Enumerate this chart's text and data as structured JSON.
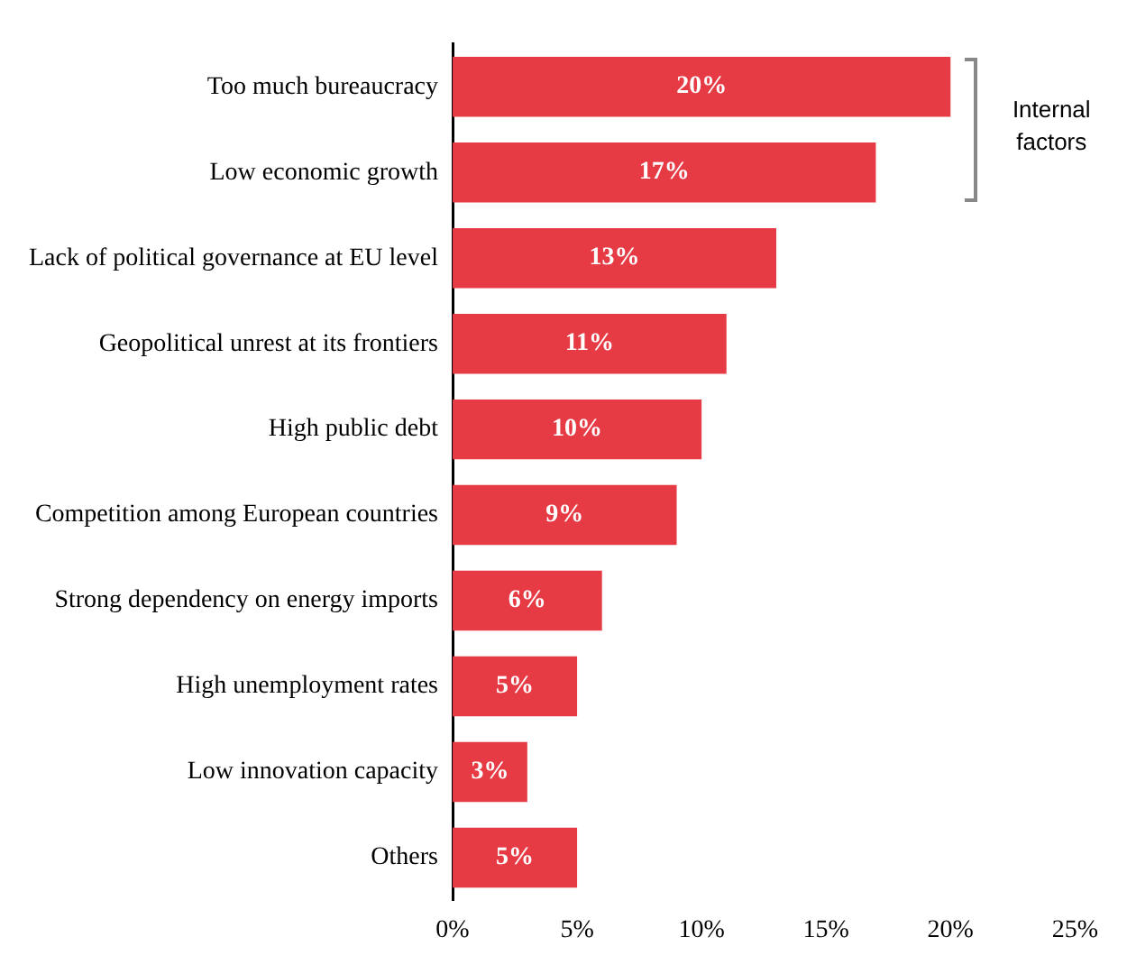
{
  "chart_data": {
    "type": "bar",
    "orientation": "horizontal",
    "categories": [
      "Too much bureaucracy",
      "Low economic growth",
      "Lack of political governance at EU level",
      "Geopolitical unrest at its frontiers",
      "High public debt",
      "Competition among European countries",
      "Strong dependency on energy imports",
      "High unemployment rates",
      "Low innovation capacity",
      "Others"
    ],
    "values": [
      20,
      17,
      13,
      11,
      10,
      9,
      6,
      5,
      3,
      5
    ],
    "value_labels": [
      "20%",
      "17%",
      "13%",
      "11%",
      "10%",
      "9%",
      "6%",
      "5%",
      "3%",
      "5%"
    ],
    "color": "#e63b45",
    "xlim": [
      0,
      25
    ],
    "xticks": [
      {
        "value": 0,
        "label": "0%"
      },
      {
        "value": 5,
        "label": "5%"
      },
      {
        "value": 10,
        "label": "10%"
      },
      {
        "value": 15,
        "label": "15%"
      },
      {
        "value": 20,
        "label": "20%"
      },
      {
        "value": 25,
        "label": "25%"
      }
    ],
    "grid": false,
    "annotations": [
      "Internal factors"
    ]
  }
}
